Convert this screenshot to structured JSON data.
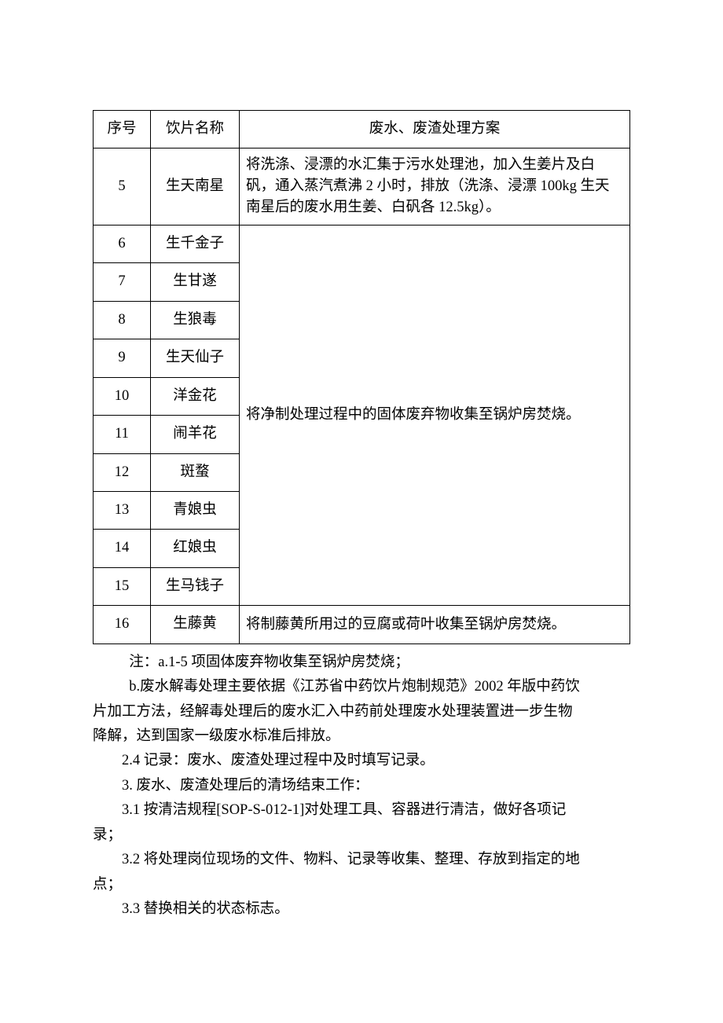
{
  "table": {
    "header": {
      "seq": "序号",
      "name": "饮片名称",
      "plan": "废水、废渣处理方案"
    },
    "row5": {
      "seq": "5",
      "name": "生天南星",
      "plan": "将洗涤、浸漂的水汇集于污水处理池，加入生姜片及白矾，通入蒸汽煮沸 2 小时，排放（洗涤、浸漂 100kg 生天南星后的废水用生姜、白矾各 12.5kg）。"
    },
    "mergedPlan": "将净制处理过程中的固体废弃物收集至锅炉房焚烧。",
    "mergedRows": [
      {
        "seq": "6",
        "name": "生千金子"
      },
      {
        "seq": "7",
        "name": "生甘遂"
      },
      {
        "seq": "8",
        "name": "生狼毒"
      },
      {
        "seq": "9",
        "name": "生天仙子"
      },
      {
        "seq": "10",
        "name": "洋金花"
      },
      {
        "seq": "11",
        "name": "闹羊花"
      },
      {
        "seq": "12",
        "name": "斑蝥"
      },
      {
        "seq": "13",
        "name": "青娘虫"
      },
      {
        "seq": "14",
        "name": "红娘虫"
      },
      {
        "seq": "15",
        "name": "生马钱子"
      }
    ],
    "row16": {
      "seq": "16",
      "name": "生藤黄",
      "plan": "将制藤黄所用过的豆腐或荷叶收集至锅炉房焚烧。"
    }
  },
  "notes": {
    "a": "注：a.1-5 项固体废弃物收集至锅炉房焚烧；",
    "b1": "b.废水解毒处理主要依据《江苏省中药饮片炮制规范》2002 年版中药饮",
    "b2": "片加工方法，经解毒处理后的废水汇入中药前处理废水处理装置进一步生物",
    "b3": "降解，达到国家一级废水标准后排放。",
    "p24": "2.4 记录：废水、废渣处理过程中及时填写记录。",
    "p3": "3. 废水、废渣处理后的清场结束工作：",
    "p31a": "3.1 按清洁规程[SOP-S-012-1]对处理工具、容器进行清洁，做好各项记",
    "p31b": "录；",
    "p32a": "3.2 将处理岗位现场的文件、物料、记录等收集、整理、存放到指定的地",
    "p32b": "点；",
    "p33": "3.3 替换相关的状态标志。"
  },
  "style": {
    "text_color": "#000000",
    "background_color": "#ffffff",
    "border_color": "#000000",
    "font_family": "SimSun",
    "base_fontsize": 18.5,
    "col_widths": {
      "seq": 60,
      "name": 100
    }
  }
}
